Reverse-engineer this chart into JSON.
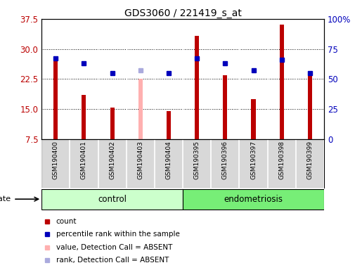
{
  "title": "GDS3060 / 221419_s_at",
  "samples": [
    "GSM190400",
    "GSM190401",
    "GSM190402",
    "GSM190403",
    "GSM190404",
    "GSM190395",
    "GSM190396",
    "GSM190397",
    "GSM190398",
    "GSM190399"
  ],
  "counts": [
    27.5,
    18.5,
    15.3,
    22.5,
    14.5,
    33.2,
    23.5,
    17.5,
    36.0,
    23.5
  ],
  "percentile_ranks": [
    67,
    63,
    55,
    57,
    55,
    67,
    63,
    57,
    66,
    55
  ],
  "absent_flags": [
    false,
    false,
    false,
    true,
    false,
    false,
    false,
    false,
    false,
    false
  ],
  "control_count": 5,
  "endometriosis_count": 5,
  "ylim_left": [
    7.5,
    37.5
  ],
  "ylim_right": [
    0,
    100
  ],
  "yticks_left": [
    7.5,
    15.0,
    22.5,
    30.0,
    37.5
  ],
  "yticks_right": [
    0,
    25,
    50,
    75,
    100
  ],
  "ytick_labels_right": [
    "0",
    "25",
    "50",
    "75",
    "100%"
  ],
  "bar_color_normal": "#BB0000",
  "bar_color_absent": "#FFB0B0",
  "rank_color_normal": "#0000BB",
  "rank_color_absent": "#AAAADD",
  "control_bg": "#CCFFCC",
  "endometriosis_bg": "#77EE77",
  "label_color_left": "#BB0000",
  "label_color_right": "#0000BB",
  "grid_color": "#000000",
  "bar_width": 0.15,
  "rank_marker_size": 5,
  "tick_area_bg": "#D8D8D8",
  "tick_divider_color": "#FFFFFF"
}
